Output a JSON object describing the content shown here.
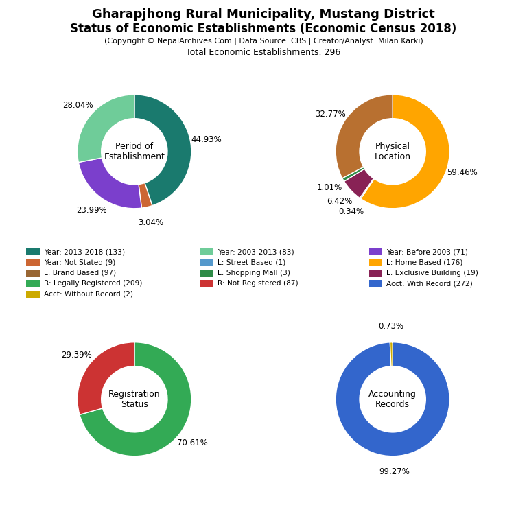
{
  "title": [
    "Gharapjhong Rural Municipality, Mustang District",
    "Status of Economic Establishments (Economic Census 2018)"
  ],
  "subtitle": [
    "(Copyright © NepalArchives.Com | Data Source: CBS | Creator/Analyst: Milan Karki)",
    "Total Economic Establishments: 296"
  ],
  "chart_data": [
    {
      "type": "pie",
      "title": "Period of\nEstablishment",
      "values": [
        44.93,
        3.04,
        23.99,
        28.04
      ],
      "value_labels": [
        "44.93%",
        "3.04%",
        "23.99%",
        "28.04%"
      ],
      "colors": [
        "#1A7A6E",
        "#CC6633",
        "#7B3FCC",
        "#6FCC99"
      ],
      "data_labels": true
    },
    {
      "type": "pie",
      "title": "Physical\nLocation",
      "values": [
        59.46,
        0.34,
        6.42,
        1.01,
        32.77
      ],
      "value_labels": [
        "59.46%",
        "0.34%",
        "6.42%",
        "1.01%",
        "32.77%"
      ],
      "colors": [
        "#FFA500",
        "#5599CC",
        "#882255",
        "#2E8B47",
        "#B87030"
      ],
      "data_labels": true
    },
    {
      "type": "pie",
      "title": "Registration\nStatus",
      "values": [
        70.61,
        29.39
      ],
      "value_labels": [
        "70.61%",
        "29.39%"
      ],
      "colors": [
        "#33AA55",
        "#CC3333"
      ],
      "data_labels": true
    },
    {
      "type": "pie",
      "title": "Accounting\nRecords",
      "values": [
        99.27,
        0.73
      ],
      "value_labels": [
        "99.27%",
        "0.73%"
      ],
      "colors": [
        "#3366CC",
        "#CCAA00"
      ],
      "data_labels": true
    }
  ],
  "legend_entries": [
    {
      "name": "Year: 2013-2018 (133)",
      "color": "#1A7A6E"
    },
    {
      "name": "Year: Not Stated (9)",
      "color": "#CC6633"
    },
    {
      "name": "L: Brand Based (97)",
      "color": "#996633"
    },
    {
      "name": "R: Legally Registered (209)",
      "color": "#33AA55"
    },
    {
      "name": "Acct: Without Record (2)",
      "color": "#CCAA00"
    },
    {
      "name": "Year: 2003-2013 (83)",
      "color": "#6FCC99"
    },
    {
      "name": "L: Street Based (1)",
      "color": "#5599CC"
    },
    {
      "name": "L: Shopping Mall (3)",
      "color": "#2E8B47"
    },
    {
      "name": "R: Not Registered (87)",
      "color": "#CC3333"
    },
    {
      "name": "Year: Before 2003 (71)",
      "color": "#7B3FCC"
    },
    {
      "name": "L: Home Based (176)",
      "color": "#FFA500"
    },
    {
      "name": "L: Exclusive Building (19)",
      "color": "#882255"
    },
    {
      "name": "Acct: With Record (272)",
      "color": "#3366CC"
    }
  ]
}
